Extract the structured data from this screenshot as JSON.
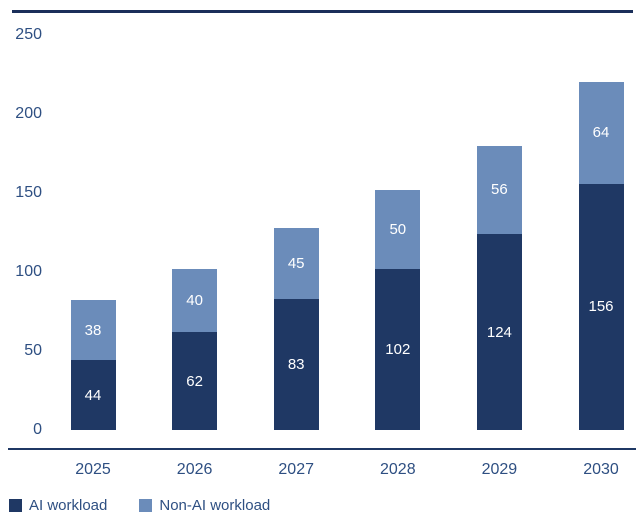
{
  "chart_data": {
    "type": "bar",
    "stacked": true,
    "title": "",
    "categories": [
      "2025",
      "2026",
      "2027",
      "2028",
      "2029",
      "2030"
    ],
    "series": [
      {
        "name": "AI workload",
        "color": "#1f3864",
        "values": [
          44,
          62,
          83,
          102,
          124,
          156
        ]
      },
      {
        "name": "Non-AI workload",
        "color": "#6b8cba",
        "values": [
          38,
          40,
          45,
          50,
          56,
          64
        ]
      }
    ],
    "ylim": [
      0,
      250
    ],
    "yticks": [
      "0",
      "50",
      "100",
      "150",
      "200",
      "250"
    ],
    "grid": false,
    "legend_position": "bottom-left",
    "value_labels": "white, centered inside each segment"
  },
  "colors": {
    "background": "#ffffff",
    "ai_workload": "#1f3864",
    "non_ai_workload": "#6b8cba",
    "axis_line": "#1f3864",
    "top_rule": "#1b2f5a",
    "tick_label": "#2e4f82"
  }
}
